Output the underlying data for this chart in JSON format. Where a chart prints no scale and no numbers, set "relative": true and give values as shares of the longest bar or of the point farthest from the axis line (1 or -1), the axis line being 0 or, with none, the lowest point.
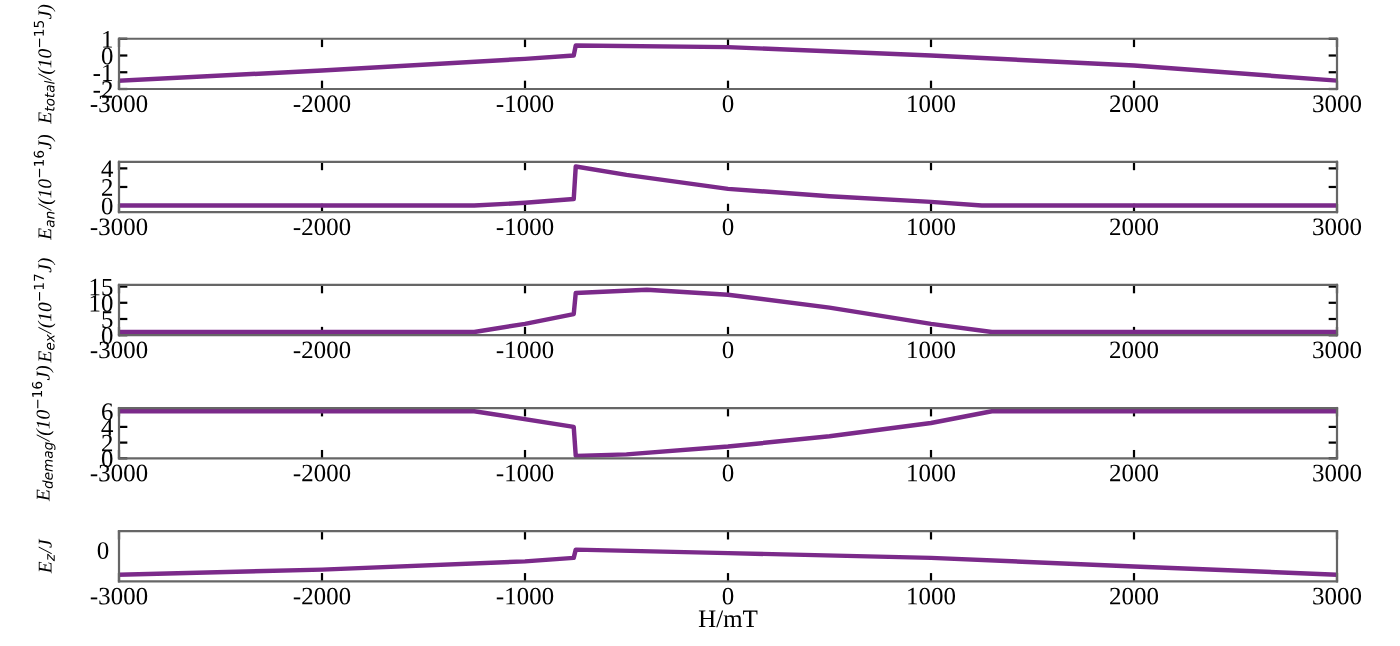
{
  "chart_data": [
    {
      "type": "line",
      "ylabel": "E$_{total}$/(10$^{−15}$J)",
      "xlim": [
        -3000,
        3000
      ],
      "xticks": [
        -3000,
        -2000,
        -1000,
        0,
        1000,
        2000,
        3000
      ],
      "ylim": [
        -2,
        1
      ],
      "yticks": [
        -2,
        -1,
        0,
        1
      ],
      "x": [
        -3000,
        -2000,
        -1000,
        -760,
        -750,
        0,
        1000,
        2000,
        3000
      ],
      "series": [
        {
          "color": "#7b2a8a",
          "values": [
            -1.5,
            -0.9,
            -0.2,
            0,
            0.6,
            0.5,
            0,
            -0.6,
            -1.5
          ]
        }
      ]
    },
    {
      "type": "line",
      "ylabel": "E$_{an}$/(10$^{−16}$J)",
      "xlim": [
        -3000,
        3000
      ],
      "xticks": [
        -3000,
        -2000,
        -1000,
        0,
        1000,
        2000,
        3000
      ],
      "ylim": [
        -0.7,
        4.7
      ],
      "yticks": [
        0,
        2,
        4
      ],
      "x": [
        -3000,
        -1250,
        -1000,
        -760,
        -750,
        -500,
        0,
        500,
        1000,
        1250,
        3000
      ],
      "series": [
        {
          "color": "#7b2a8a",
          "values": [
            0,
            0,
            0.3,
            0.7,
            4.2,
            3.3,
            1.8,
            1,
            0.4,
            0,
            0
          ]
        }
      ]
    },
    {
      "type": "line",
      "ylabel": "E$_{ex}$/(10$^{−17}$J)",
      "xlim": [
        -3000,
        3000
      ],
      "xticks": [
        -3000,
        -2000,
        -1000,
        0,
        1000,
        2000,
        3000
      ],
      "ylim": [
        0,
        15.5
      ],
      "yticks": [
        0,
        5,
        10,
        15
      ],
      "x": [
        -3000,
        -1250,
        -1000,
        -760,
        -750,
        -400,
        0,
        500,
        1000,
        1300,
        3000
      ],
      "series": [
        {
          "color": "#7b2a8a",
          "values": [
            1,
            1,
            3.5,
            6.5,
            13,
            14,
            12.5,
            8.5,
            3.5,
            1,
            1
          ]
        }
      ]
    },
    {
      "type": "line",
      "ylabel": "E$_{demag}$/(10$^{−16}$J)",
      "xlim": [
        -3000,
        3000
      ],
      "xticks": [
        -3000,
        -2000,
        -1000,
        0,
        1000,
        2000,
        3000
      ],
      "ylim": [
        0,
        6.4
      ],
      "yticks": [
        0,
        2,
        4,
        6
      ],
      "x": [
        -3000,
        -1250,
        -760,
        -750,
        -500,
        0,
        500,
        1000,
        1300,
        3000
      ],
      "series": [
        {
          "color": "#7b2a8a",
          "values": [
            6,
            6,
            4,
            0.3,
            0.5,
            1.5,
            2.8,
            4.5,
            6,
            6
          ]
        }
      ]
    },
    {
      "type": "line",
      "relative": true,
      "ylabel": "E$_{z}$/J",
      "xlabel": "H/mT",
      "xlim": [
        -3000,
        3000
      ],
      "xticks": [
        -3000,
        -2000,
        -1000,
        0,
        1000,
        2000,
        3000
      ],
      "annotations": [
        "0"
      ],
      "x": [
        -3000,
        -2000,
        -1000,
        -760,
        -750,
        0,
        1000,
        2000,
        3000
      ],
      "series": [
        {
          "color": "#7b2a8a",
          "values": [
            0.21,
            0.37,
            0.63,
            0.74,
            1,
            0.89,
            0.74,
            0.47,
            0.21
          ]
        }
      ]
    }
  ]
}
